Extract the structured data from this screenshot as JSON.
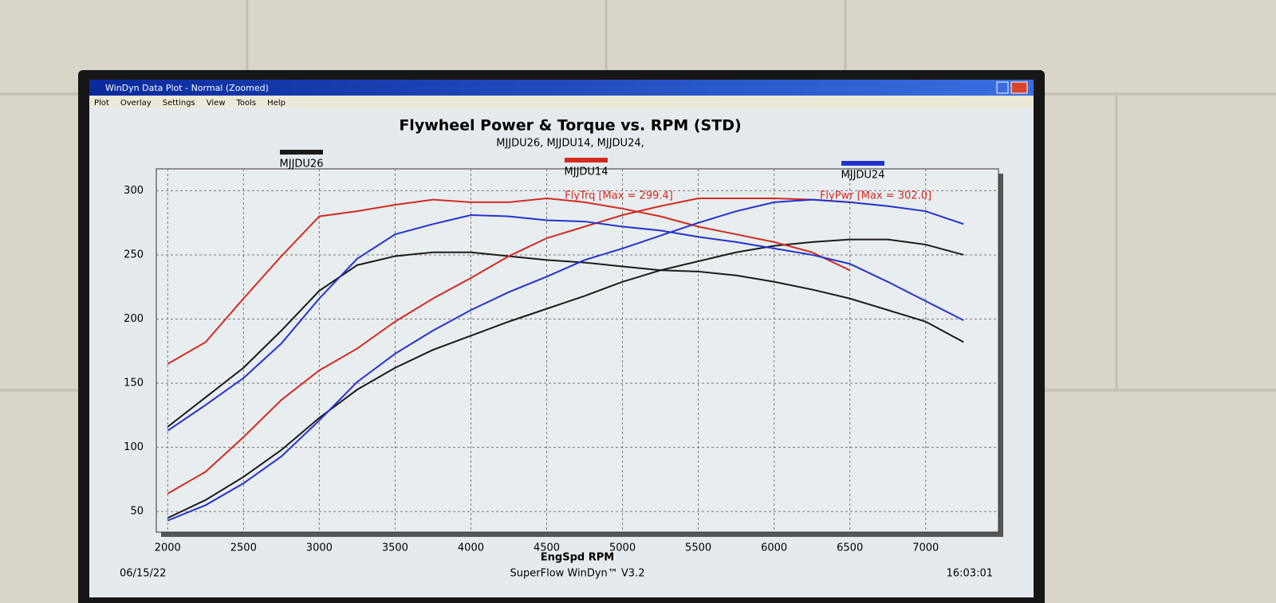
{
  "window_title": "WinDyn Data Plot - Normal  (Zoomed)",
  "menu": [
    "Plot",
    "Overlay",
    "Settings",
    "View",
    "Tools",
    "Help"
  ],
  "chart_data": {
    "type": "line",
    "title": "Flywheel Power & Torque vs. RPM (STD)",
    "subtitle": "MJJDU26, MJJDU14, MJJDU24,",
    "x_label": "EngSpd RPM",
    "x": [
      2000,
      2250,
      2500,
      2750,
      3000,
      3250,
      3500,
      3750,
      4000,
      4250,
      4500,
      4750,
      5000,
      5250,
      5500,
      5750,
      6000,
      6250,
      6500,
      6750,
      7000,
      7250
    ],
    "series": [
      {
        "name": "MJJDU26",
        "color": "#1a1a1a",
        "torque": [
          116,
          139,
          162,
          191,
          222,
          242,
          249,
          252,
          252,
          249,
          246,
          244,
          241,
          238,
          237,
          234,
          229,
          223,
          216,
          207,
          198,
          182
        ],
        "power": [
          45,
          59,
          77,
          98,
          123,
          145,
          162,
          176,
          187,
          198,
          208,
          218,
          229,
          238,
          245,
          252,
          257,
          260,
          262,
          262,
          258,
          250
        ]
      },
      {
        "name": "MJJDU14",
        "color": "#d42a20",
        "torque": [
          165,
          182,
          216,
          249,
          280,
          284,
          289,
          293,
          291,
          291,
          294,
          291,
          286,
          280,
          272,
          266,
          260,
          252,
          238,
          null,
          null,
          null
        ],
        "power": [
          64,
          81,
          108,
          137,
          160,
          177,
          198,
          216,
          232,
          249,
          263,
          272,
          281,
          288,
          294,
          294,
          294,
          293,
          291,
          null,
          null,
          null
        ]
      },
      {
        "name": "MJJDU24",
        "color": "#2233cc",
        "torque": [
          113,
          133,
          154,
          181,
          216,
          247,
          266,
          274,
          281,
          280,
          277,
          276,
          272,
          269,
          264,
          260,
          255,
          250,
          243,
          229,
          214,
          199
        ],
        "power": [
          43,
          55,
          72,
          93,
          121,
          151,
          173,
          191,
          207,
          221,
          233,
          246,
          255,
          265,
          275,
          284,
          291,
          293,
          291,
          288,
          284,
          274
        ]
      }
    ],
    "annotations": [
      "FlyTrq [Max = 299.4]",
      "FlyPwr [Max = 302.0]"
    ],
    "xlim": [
      1925,
      7480
    ],
    "ylim": [
      34,
      317
    ],
    "xticks": [
      2000,
      2500,
      3000,
      3500,
      4000,
      4500,
      5000,
      5500,
      6000,
      6500,
      7000
    ],
    "yticks": [
      50,
      100,
      150,
      200,
      250,
      300
    ],
    "grid": true
  },
  "footer": {
    "date": "06/15/22",
    "center": "SuperFlow WinDyn™ V3.2",
    "time": "16:03:01"
  }
}
